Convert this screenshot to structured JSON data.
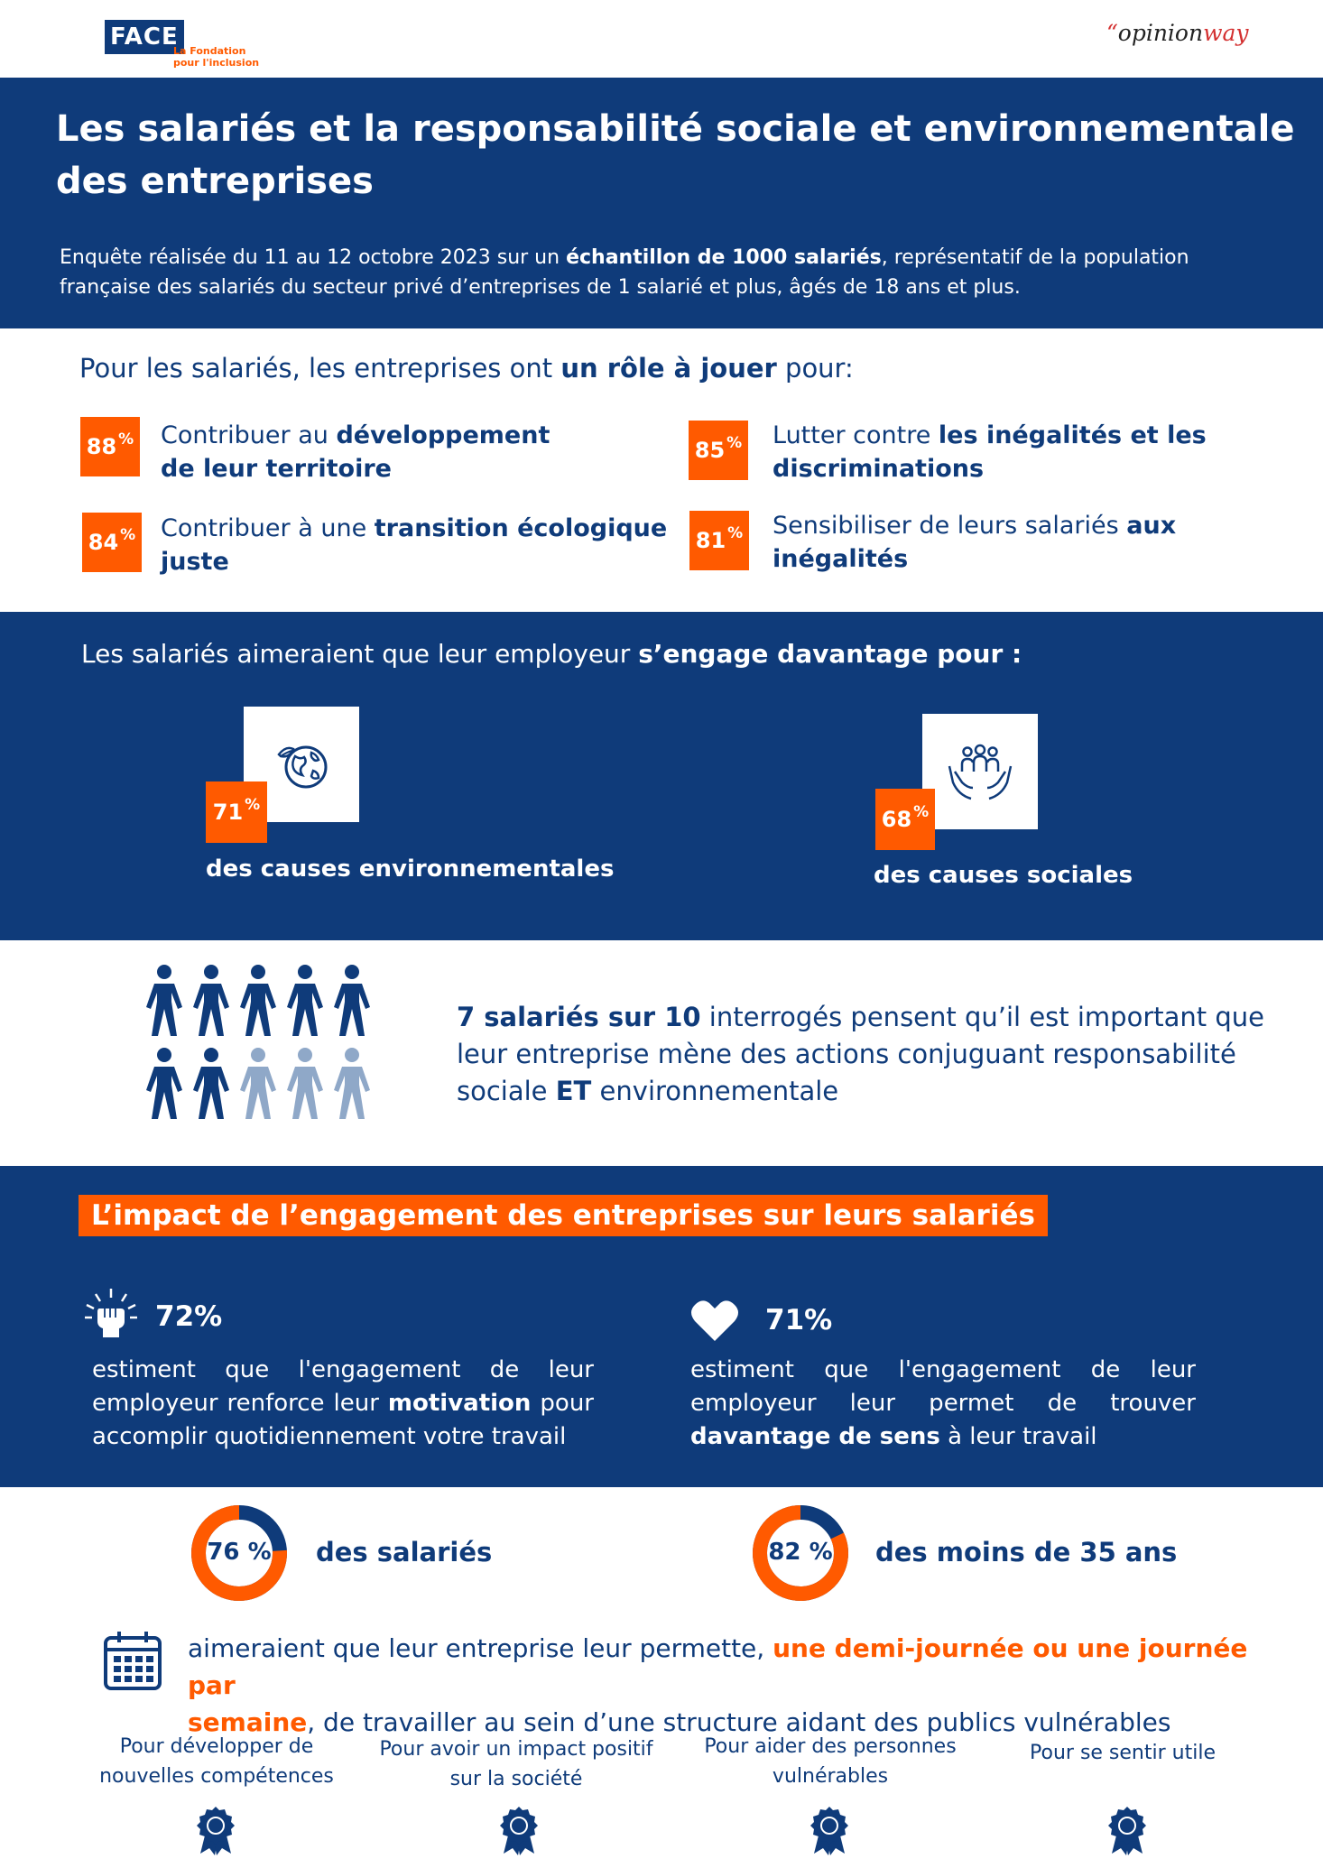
{
  "header": {
    "face_logo_text": "FACE",
    "face_tagline_1": "La Fondation",
    "face_tagline_2": "pour l'inclusion",
    "opinionway_quote": "“",
    "opinionway_a": "opinion",
    "opinionway_b": "way"
  },
  "title": {
    "line1": "Les salariés et la responsabilité sociale et environnementale",
    "line2": "des entreprises",
    "survey_a": "Enquête réalisée du 11 au 12 octobre 2023 sur un ",
    "survey_b": "échantillon de 1000 salariés",
    "survey_c": ", représentatif de la population",
    "survey_line2": "française des salariés du secteur privé d’entreprises de 1 salarié et plus, âgés de 18 ans et plus."
  },
  "role": {
    "intro_a": "Pour les salariés, les entreprises ont ",
    "intro_b": "un rôle à jouer",
    "intro_c": " pour:",
    "items": [
      {
        "value": "88",
        "unit": "%",
        "pre": "Contribuer au ",
        "bold1": "développement",
        "bold2": "de leur territoire"
      },
      {
        "value": "85",
        "unit": "%",
        "pre": "Lutter contre ",
        "bold1": "les inégalités et les",
        "bold2": "discriminations"
      },
      {
        "value": "84",
        "unit": "%",
        "pre": "Contribuer à une ",
        "bold1": "transition écologique",
        "bold2": "juste"
      },
      {
        "value": "81",
        "unit": "%",
        "pre": "Sensibiliser de leurs salariés ",
        "bold1": "aux",
        "bold2": "inégalités"
      }
    ]
  },
  "engage": {
    "intro_a": "Les salariés aimeraient que leur employeur ",
    "intro_b": "s’engage davantage pour :",
    "env_value": "71",
    "env_unit": "%",
    "env_label": "des causes environnementales",
    "soc_value": "68",
    "soc_unit": "%",
    "soc_label": "des causes sociales"
  },
  "people": {
    "total": 10,
    "highlighted": 7,
    "text_bold": "7 salariés sur 10",
    "text_a": " interrogés pensent qu’il est important que",
    "text_line2": "leur entreprise mène des actions conjuguant responsabilité",
    "text_c": "sociale ",
    "text_bold2": "ET",
    "text_d": " environnementale"
  },
  "impact": {
    "heading": "L’impact de l’engagement des entreprises sur leurs salariés",
    "left_value": "72%",
    "left_line1": "estiment que l'engagement de leur",
    "left_line2_a": "employeur renforce leur ",
    "left_line2_b": "motivation",
    "left_line2_c": " pour",
    "left_line3": "accomplir quotidiennement votre travail",
    "right_value": "71%",
    "right_line1": "estiment que l'engagement de leur",
    "right_line2": "employeur leur permet de trouver",
    "right_line3_a": "davantage de sens",
    "right_line3_b": " à leur travail"
  },
  "donuts": {
    "left_value": "76 %",
    "left_fraction": 0.76,
    "left_label": "des salariés",
    "right_value": "82 %",
    "right_fraction": 0.82,
    "right_label": "des moins de 35 ans"
  },
  "volunteer": {
    "text_a": "aimeraient que leur entreprise leur permette, ",
    "text_orange1": "une demi-journée ou une journée par",
    "text_orange2": "semaine",
    "text_b": ", de travailler au sein d’une structure aidant  des publics vulnérables"
  },
  "reasons": [
    {
      "line1": "Pour développer de",
      "line2": "nouvelles compétences"
    },
    {
      "line1": "Pour avoir un impact positif",
      "line2": "sur la société"
    },
    {
      "line1": "Pour aider des personnes",
      "line2": "vulnérables"
    },
    {
      "line1": "Pour se sentir utile",
      "line2": ""
    }
  ],
  "colors": {
    "navy": "#0f3b7a",
    "orange": "#ff5a00",
    "light_person": "#8fa8c8"
  }
}
